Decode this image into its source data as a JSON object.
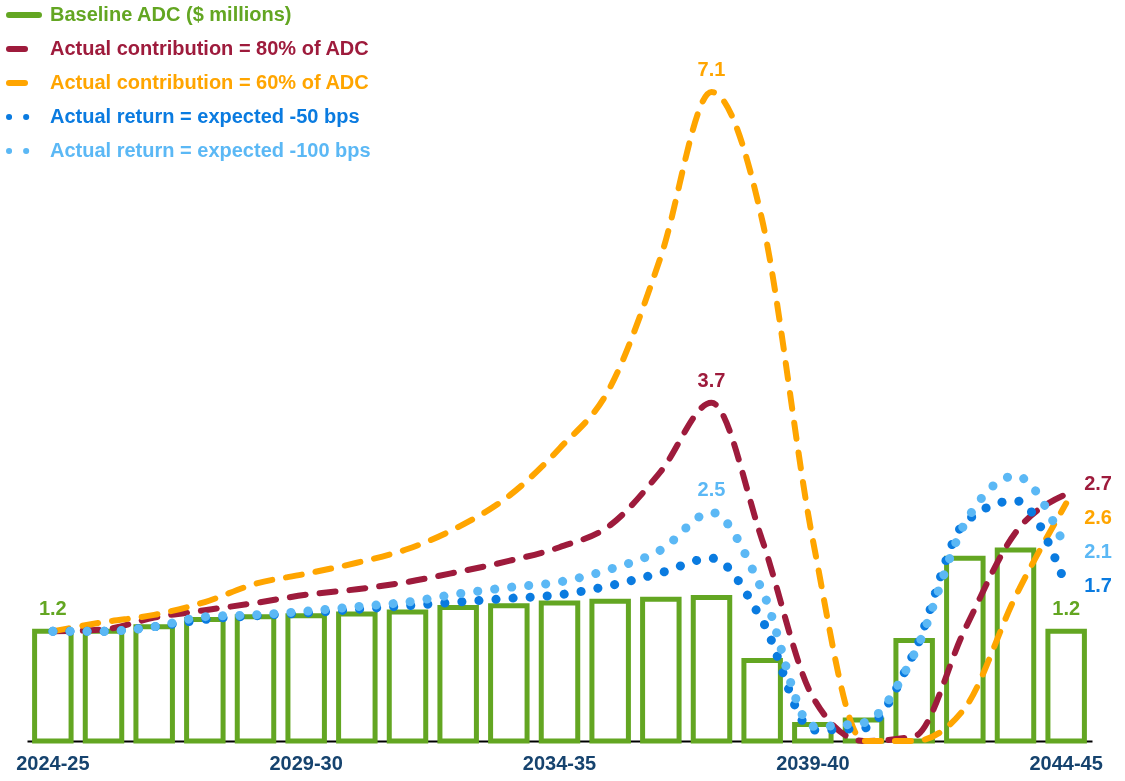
{
  "chart_data": {
    "type": "bar",
    "categories": [
      "2024-25",
      null,
      null,
      null,
      null,
      "2029-30",
      null,
      null,
      null,
      null,
      "2034-35",
      null,
      null,
      null,
      null,
      "2039-40",
      null,
      null,
      null,
      null,
      "2044-45"
    ],
    "series": [
      {
        "name": "Baseline ADC ($ millions)",
        "type": "bar",
        "color": "#63a622",
        "values": [
          1.2,
          1.2,
          1.25,
          1.33,
          1.36,
          1.37,
          1.39,
          1.41,
          1.46,
          1.48,
          1.51,
          1.53,
          1.55,
          1.57,
          0.88,
          0.18,
          0.23,
          1.1,
          2.0,
          2.09,
          1.2
        ],
        "value_labels": [
          "1.2",
          null,
          null,
          null,
          null,
          null,
          null,
          null,
          null,
          null,
          null,
          null,
          null,
          null,
          null,
          null,
          null,
          null,
          null,
          null,
          "1.2"
        ]
      },
      {
        "name": "Actual contribution = 80% of ADC",
        "type": "line",
        "line_style": "dashed",
        "color": "#9e1b3c",
        "values": [
          1.2,
          1.22,
          1.35,
          1.43,
          1.51,
          1.6,
          1.66,
          1.74,
          1.85,
          1.97,
          2.12,
          2.36,
          2.95,
          3.7,
          2.2,
          0.48,
          0.0,
          0.05,
          1.22,
          2.28,
          2.7
        ],
        "value_labels": [
          null,
          null,
          null,
          null,
          null,
          null,
          null,
          null,
          null,
          null,
          null,
          null,
          null,
          "3.7",
          null,
          null,
          null,
          null,
          null,
          null,
          "2.7"
        ]
      },
      {
        "name": "Actual contribution = 60% of ADC",
        "type": "line",
        "line_style": "dashed",
        "color": "#ffa500",
        "values": [
          1.2,
          1.3,
          1.38,
          1.52,
          1.72,
          1.83,
          1.95,
          2.1,
          2.34,
          2.68,
          3.2,
          3.87,
          5.3,
          7.1,
          5.7,
          2.2,
          0.0,
          0.0,
          0.36,
          1.58,
          2.6
        ],
        "value_labels": [
          null,
          null,
          null,
          null,
          null,
          null,
          null,
          null,
          null,
          null,
          null,
          null,
          null,
          "7.1",
          null,
          null,
          null,
          null,
          null,
          null,
          "2.6"
        ]
      },
      {
        "name": "Actual return = expected -50 bps",
        "type": "line",
        "line_style": "dotted",
        "color": "#0a7be0",
        "values": [
          1.2,
          1.2,
          1.25,
          1.33,
          1.37,
          1.4,
          1.44,
          1.48,
          1.52,
          1.56,
          1.6,
          1.7,
          1.84,
          2.0,
          1.32,
          0.12,
          0.14,
          0.97,
          2.39,
          2.63,
          1.7
        ],
        "value_labels": [
          null,
          null,
          null,
          null,
          null,
          null,
          null,
          null,
          null,
          null,
          null,
          null,
          null,
          null,
          null,
          null,
          null,
          null,
          null,
          null,
          "1.7"
        ]
      },
      {
        "name": "Actual return = expected -100 bps",
        "type": "line",
        "line_style": "dotted",
        "color": "#5bb8f5",
        "values": [
          1.2,
          1.2,
          1.25,
          1.36,
          1.38,
          1.42,
          1.47,
          1.52,
          1.61,
          1.68,
          1.74,
          1.88,
          2.09,
          2.5,
          1.65,
          0.16,
          0.2,
          0.95,
          2.38,
          2.9,
          2.1
        ],
        "value_labels": [
          null,
          null,
          null,
          null,
          null,
          null,
          null,
          null,
          null,
          null,
          null,
          null,
          null,
          "2.5",
          null,
          null,
          null,
          null,
          null,
          null,
          "2.1"
        ]
      }
    ],
    "legend": "top left",
    "marker": "none"
  }
}
